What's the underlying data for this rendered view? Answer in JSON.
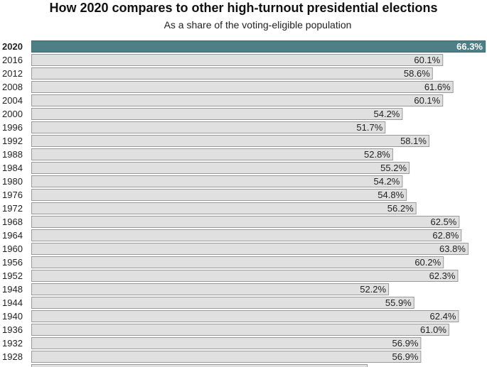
{
  "chart_data": {
    "type": "bar",
    "orientation": "horizontal",
    "title": "How 2020 compares to other high-turnout presidential elections",
    "subtitle": "As a share of the voting-eligible population",
    "categories": [
      "2020",
      "2016",
      "2012",
      "2008",
      "2004",
      "2000",
      "1996",
      "1992",
      "1988",
      "1984",
      "1980",
      "1976",
      "1972",
      "1968",
      "1964",
      "1960",
      "1956",
      "1952",
      "1948",
      "1944",
      "1940",
      "1936",
      "1932",
      "1928"
    ],
    "values": [
      66.3,
      60.1,
      58.6,
      61.6,
      60.1,
      54.2,
      51.7,
      58.1,
      52.8,
      55.2,
      54.2,
      54.8,
      56.2,
      62.5,
      62.8,
      63.8,
      60.2,
      62.3,
      52.2,
      55.9,
      62.4,
      61.0,
      56.9,
      56.9
    ],
    "labels": [
      "66.3%",
      "60.1%",
      "58.6%",
      "61.6%",
      "60.1%",
      "54.2%",
      "51.7%",
      "58.1%",
      "52.8%",
      "55.2%",
      "54.2%",
      "54.8%",
      "56.2%",
      "62.5%",
      "62.8%",
      "63.8%",
      "60.2%",
      "62.3%",
      "52.2%",
      "55.9%",
      "62.4%",
      "61.0%",
      "56.9%",
      "56.9%"
    ],
    "highlight_category": "2020",
    "xlim": [
      0,
      66.3
    ],
    "grid": false,
    "colors": {
      "highlight": "#4e7f87",
      "bar": "#e0e0e0",
      "bar_stroke": "#999999",
      "highlight_stroke": "#3d6970"
    }
  }
}
